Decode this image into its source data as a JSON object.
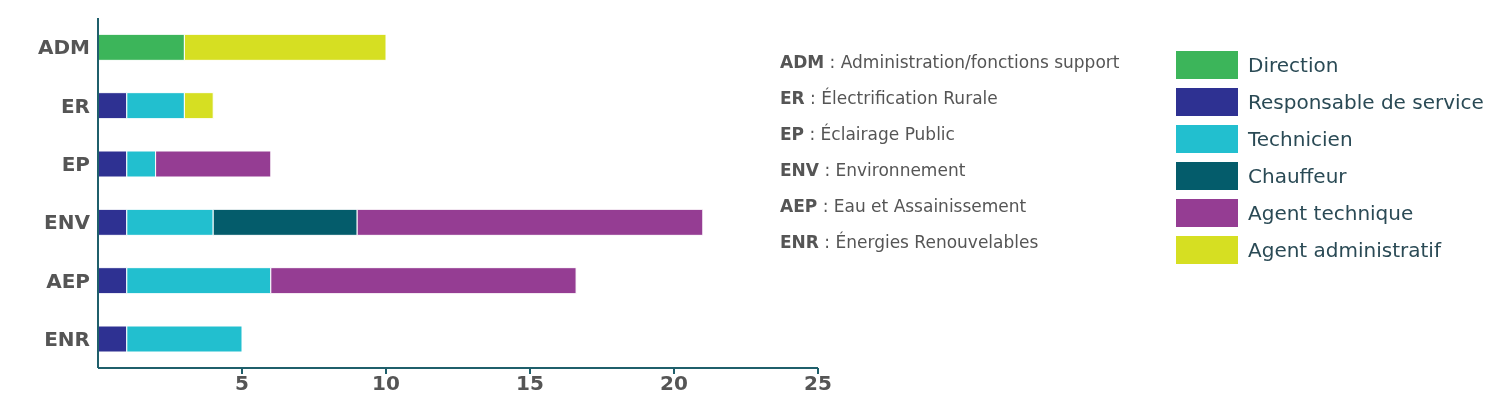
{
  "chart_data": {
    "type": "bar",
    "orientation": "horizontal",
    "stacked": true,
    "categories": [
      "ADM",
      "ER",
      "EP",
      "ENV",
      "AEP",
      "ENR"
    ],
    "series": [
      {
        "name": "Direction",
        "color": "#3cb55a",
        "values": [
          3,
          null,
          null,
          null,
          null,
          null
        ]
      },
      {
        "name": "Responsable de service",
        "color": "#2e3192",
        "values": [
          null,
          1,
          1,
          1,
          1,
          1
        ]
      },
      {
        "name": "Technicien",
        "color": "#22bfcf",
        "values": [
          null,
          2,
          1,
          3,
          5,
          4
        ]
      },
      {
        "name": "Chauffeur",
        "color": "#045c6b",
        "values": [
          null,
          null,
          null,
          5,
          null,
          null
        ]
      },
      {
        "name": "Agent technique",
        "color": "#953d93",
        "values": [
          null,
          null,
          4,
          12,
          10.6,
          null
        ]
      },
      {
        "name": "Agent administratif",
        "color": "#d6df22",
        "values": [
          7,
          1,
          null,
          null,
          null,
          null
        ]
      }
    ],
    "xlim": [
      0,
      25
    ],
    "xticks": [
      5,
      10,
      15,
      20,
      25
    ],
    "grid": false,
    "legend": "right",
    "annotations": [
      "ADM : Administration/fonctions support",
      "ER : Électrification Rurale",
      "EP : Éclairage Public",
      "ENV : Environnement",
      "AEP : Eau et Assainissement",
      "ENR : Énergies Renouvelables"
    ]
  }
}
